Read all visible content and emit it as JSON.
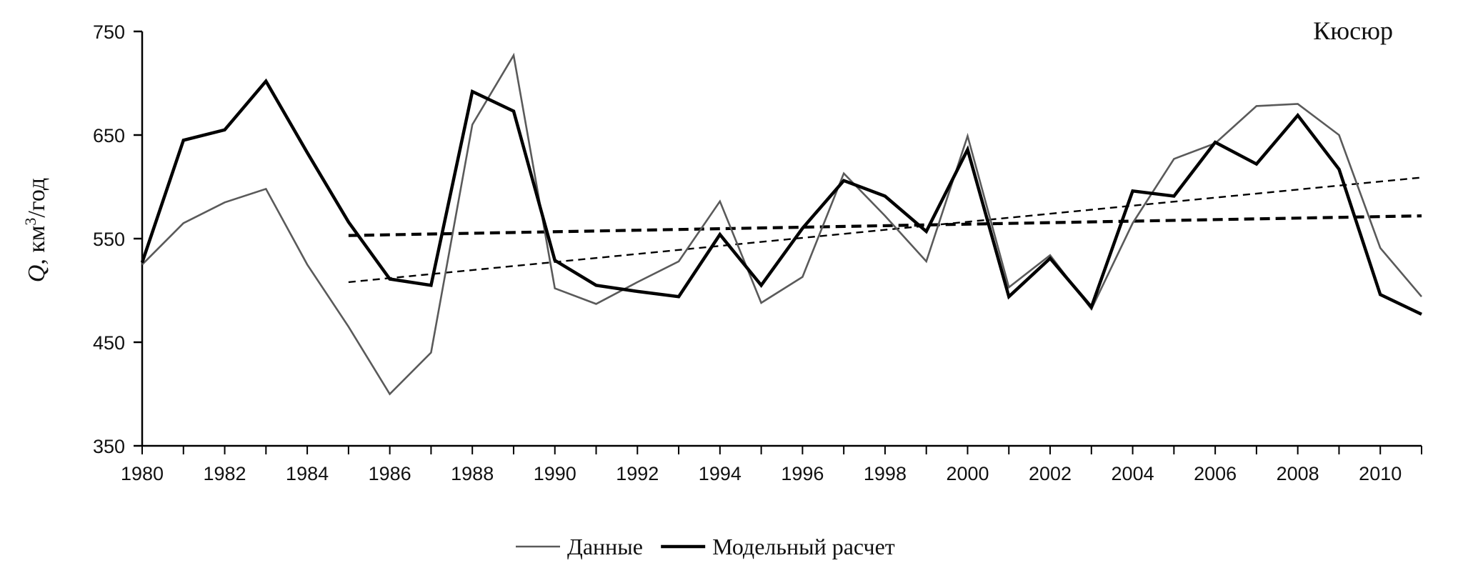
{
  "chart_data": {
    "type": "line",
    "title": "Кюсюр",
    "ylabel": "Q, км³/год",
    "ylabel_parts": {
      "symbol": "Q",
      "rest": ", км",
      "sup": "3",
      "unit": "/год"
    },
    "xlabel": "",
    "xlim": [
      1980,
      2011
    ],
    "ylim": [
      350,
      750
    ],
    "x_ticks": [
      1980,
      1982,
      1984,
      1986,
      1988,
      1990,
      1992,
      1994,
      1996,
      1998,
      2000,
      2002,
      2004,
      2006,
      2008,
      2010
    ],
    "y_ticks": [
      350,
      450,
      550,
      650,
      750
    ],
    "grid": false,
    "legend_position": "bottom-center",
    "series": [
      {
        "name": "Данные",
        "color": "#5a5a5a",
        "style": "solid-thin",
        "x": [
          1980,
          1981,
          1982,
          1983,
          1984,
          1985,
          1986,
          1987,
          1988,
          1989,
          1990,
          1991,
          1992,
          1993,
          1994,
          1995,
          1996,
          1997,
          1998,
          1999,
          2000,
          2001,
          2002,
          2003,
          2004,
          2005,
          2006,
          2007,
          2008,
          2009,
          2010,
          2011
        ],
        "values": [
          525,
          565,
          585,
          598,
          525,
          465,
          400,
          440,
          660,
          727,
          502,
          487,
          508,
          528,
          586,
          488,
          513,
          613,
          572,
          528,
          649,
          503,
          534,
          482,
          565,
          627,
          642,
          678,
          680,
          650,
          541,
          494
        ]
      },
      {
        "name": "Модельный расчет",
        "color": "#000000",
        "style": "solid-thick",
        "x": [
          1980,
          1981,
          1982,
          1983,
          1984,
          1985,
          1986,
          1987,
          1988,
          1989,
          1990,
          1991,
          1992,
          1993,
          1994,
          1995,
          1996,
          1997,
          1998,
          1999,
          2000,
          2001,
          2002,
          2003,
          2004,
          2005,
          2006,
          2007,
          2008,
          2009,
          2010,
          2011
        ],
        "values": [
          527,
          645,
          655,
          702,
          633,
          566,
          511,
          505,
          692,
          673,
          529,
          505,
          499,
          494,
          554,
          505,
          560,
          606,
          591,
          557,
          636,
          494,
          531,
          484,
          596,
          591,
          643,
          622,
          669,
          617,
          496,
          477
        ]
      }
    ],
    "trend_lines": [
      {
        "of": "Данные",
        "color": "#000000",
        "style": "dashed-thin",
        "x": [
          1985,
          2011
        ],
        "values": [
          508,
          609
        ]
      },
      {
        "of": "Модельный расчет",
        "color": "#000000",
        "style": "dashed-thick",
        "x": [
          1985,
          2011
        ],
        "values": [
          553,
          572
        ]
      }
    ]
  }
}
